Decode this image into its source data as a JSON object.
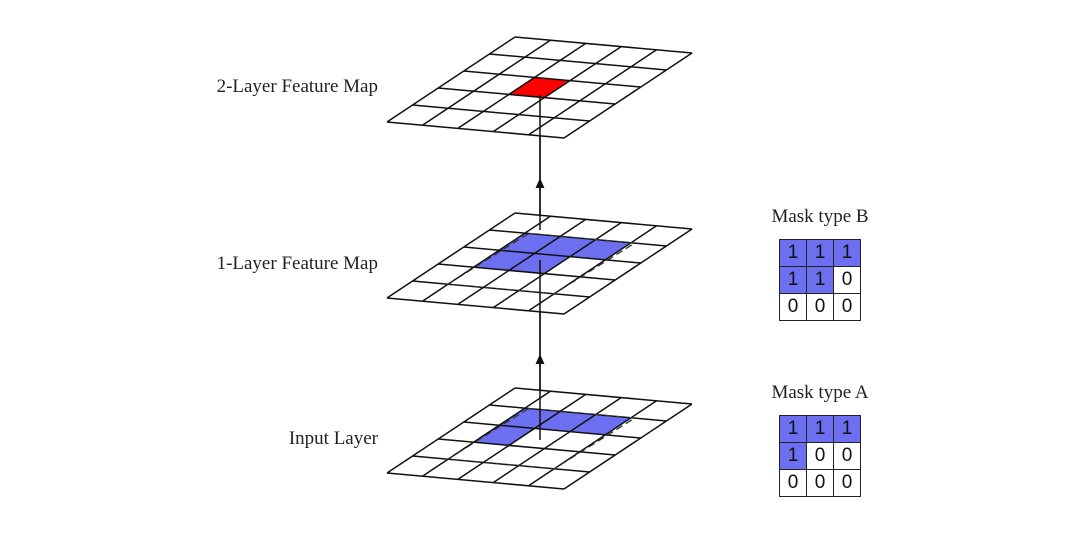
{
  "layers": [
    {
      "label": "2-Layer Feature Map",
      "highlight_color": "#ff0000",
      "highlight_cells": [
        [
          2,
          2
        ]
      ],
      "dashed_window": false
    },
    {
      "label": "1-Layer Feature Map",
      "highlight_color": "#6b6ff0",
      "highlight_cells": [
        [
          1,
          1
        ],
        [
          1,
          2
        ],
        [
          1,
          3
        ],
        [
          2,
          1
        ],
        [
          2,
          2
        ]
      ],
      "dashed_window": true
    },
    {
      "label": "Input Layer",
      "highlight_color": "#6b6ff0",
      "highlight_cells": [
        [
          1,
          1
        ],
        [
          1,
          2
        ],
        [
          1,
          3
        ],
        [
          2,
          1
        ]
      ],
      "dashed_window": true
    }
  ],
  "grid_size": 5,
  "masks": [
    {
      "title": "Mask type B",
      "values": [
        [
          "1",
          "1",
          "1"
        ],
        [
          "1",
          "1",
          "0"
        ],
        [
          "0",
          "0",
          "0"
        ]
      ]
    },
    {
      "title": "Mask type A",
      "values": [
        [
          "1",
          "1",
          "1"
        ],
        [
          "1",
          "0",
          "0"
        ],
        [
          "0",
          "0",
          "0"
        ]
      ]
    }
  ],
  "colors": {
    "mask_on": "#6b6ff0",
    "line": "#111111"
  }
}
